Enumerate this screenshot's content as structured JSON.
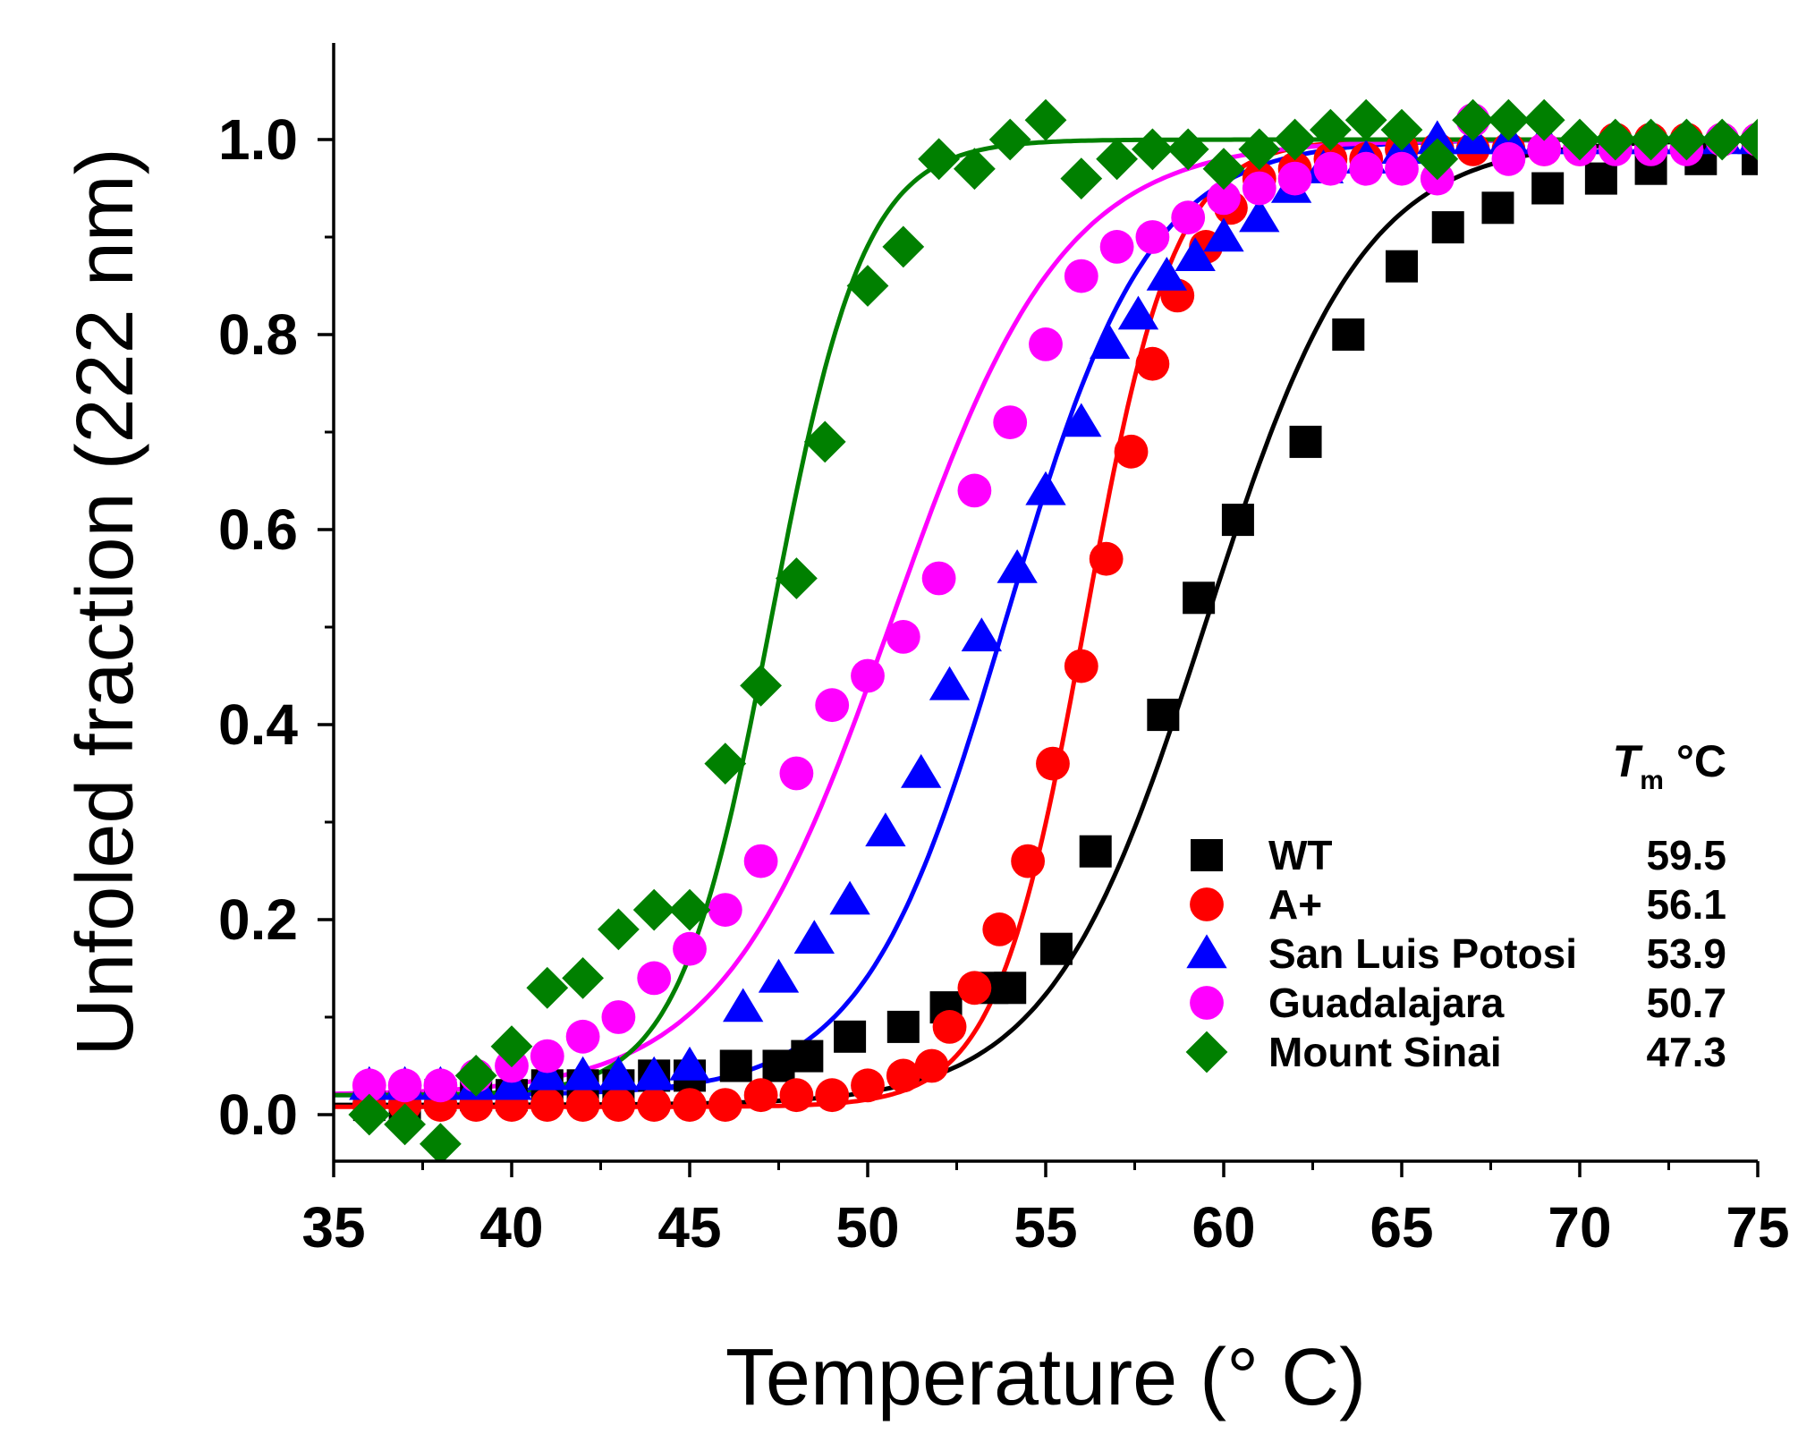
{
  "chart_data": {
    "type": "scatter",
    "xlabel": "Temperature (° C)",
    "ylabel": "Unfoled fraction (222 nm)",
    "xlim": [
      35,
      75
    ],
    "ylim": [
      -0.05,
      1.1
    ],
    "xticks": [
      35,
      40,
      45,
      50,
      55,
      60,
      65,
      70,
      75
    ],
    "xtick_labels": [
      "35",
      "40",
      "45",
      "50",
      "55",
      "60",
      "65",
      "70",
      "75"
    ],
    "yticks": [
      0.0,
      0.2,
      0.4,
      0.6,
      0.8,
      1.0
    ],
    "ytick_labels": [
      "0.0",
      "0.2",
      "0.4",
      "0.6",
      "0.8",
      "1.0"
    ],
    "legend": {
      "position": "bottom-right",
      "header_symbol": "T",
      "header_subscript": "m",
      "header_unit": "°C"
    },
    "series": [
      {
        "name": "WT",
        "tm_label": "59.5",
        "color": "#000000",
        "marker": "square",
        "fit": {
          "tm": 59.5,
          "width": 2.2,
          "base": 0.01
        },
        "x": [
          36,
          37,
          38,
          39,
          40,
          41,
          42,
          43,
          44,
          45,
          46.3,
          47.5,
          48.3,
          49.5,
          51,
          52.2,
          53.5,
          54,
          55.3,
          56.4,
          58.3,
          59.3,
          60.4,
          62.3,
          63.5,
          65,
          66.3,
          67.7,
          69.1,
          70.6,
          72,
          73.4,
          75
        ],
        "y": [
          0.01,
          0.01,
          0.02,
          0.02,
          0.02,
          0.03,
          0.03,
          0.03,
          0.04,
          0.04,
          0.05,
          0.05,
          0.06,
          0.08,
          0.09,
          0.11,
          0.13,
          0.13,
          0.17,
          0.27,
          0.41,
          0.53,
          0.61,
          0.69,
          0.8,
          0.87,
          0.91,
          0.93,
          0.95,
          0.96,
          0.97,
          0.98,
          0.98
        ]
      },
      {
        "name": "A+",
        "tm_label": "56.1",
        "color": "#ff0000",
        "marker": "circle",
        "fit": {
          "tm": 56.1,
          "width": 1.25,
          "base": 0.008
        },
        "x": [
          36,
          37,
          38,
          39,
          40,
          41,
          42,
          43,
          44,
          45,
          46,
          47,
          48,
          49,
          50,
          51,
          51.8,
          52.3,
          53,
          53.7,
          54.5,
          55.2,
          56,
          56.7,
          57.4,
          58,
          58.7,
          59.5,
          60.2,
          61,
          62,
          63,
          64,
          65,
          66,
          67,
          68,
          69,
          70,
          71,
          72,
          73,
          74,
          75
        ],
        "y": [
          0.01,
          0.01,
          0.01,
          0.01,
          0.01,
          0.01,
          0.01,
          0.01,
          0.01,
          0.01,
          0.01,
          0.02,
          0.02,
          0.02,
          0.03,
          0.04,
          0.05,
          0.09,
          0.13,
          0.19,
          0.26,
          0.36,
          0.46,
          0.57,
          0.68,
          0.77,
          0.84,
          0.89,
          0.93,
          0.96,
          0.97,
          0.98,
          0.98,
          0.99,
          0.99,
          0.99,
          0.99,
          0.99,
          0.99,
          1.0,
          1.0,
          1.0,
          1.0,
          1.0
        ]
      },
      {
        "name": "San Luis Potosi",
        "tm_label": "53.9",
        "color": "#0000ff",
        "marker": "triangle",
        "fit": {
          "tm": 53.9,
          "width": 2.0,
          "base": 0.02
        },
        "x": [
          36,
          37,
          38,
          39,
          40,
          41,
          42,
          43,
          44,
          45,
          46.5,
          47.5,
          48.5,
          49.5,
          50.5,
          51.5,
          52.3,
          53.2,
          54.2,
          55,
          56,
          56.8,
          57.6,
          58.4,
          59.2,
          60,
          61,
          61.9,
          62.8,
          64,
          65,
          66,
          67,
          68,
          69,
          70,
          71,
          72,
          73,
          74,
          75
        ],
        "y": [
          0.03,
          0.03,
          0.03,
          0.03,
          0.03,
          0.04,
          0.04,
          0.04,
          0.04,
          0.05,
          0.11,
          0.14,
          0.18,
          0.22,
          0.29,
          0.35,
          0.44,
          0.49,
          0.56,
          0.64,
          0.71,
          0.79,
          0.82,
          0.86,
          0.88,
          0.9,
          0.92,
          0.95,
          0.97,
          0.98,
          0.99,
          1.0,
          1.0,
          1.0,
          1.0,
          1.0,
          1.0,
          1.0,
          1.0,
          1.0,
          1.0
        ]
      },
      {
        "name": "Guadalajara",
        "tm_label": "50.7",
        "color": "#ff00ff",
        "marker": "circle",
        "fit": {
          "tm": 50.7,
          "width": 2.4,
          "base": 0.02
        },
        "x": [
          36,
          37,
          38,
          39,
          40,
          41,
          42,
          43,
          44,
          45,
          46,
          47,
          48,
          49,
          50,
          51,
          52,
          53,
          54,
          55,
          56,
          57,
          58,
          59,
          60,
          61,
          62,
          63,
          64,
          65,
          66,
          67,
          68,
          69,
          70,
          71,
          72,
          73,
          74,
          75
        ],
        "y": [
          0.03,
          0.03,
          0.03,
          0.04,
          0.05,
          0.06,
          0.08,
          0.1,
          0.14,
          0.17,
          0.21,
          0.26,
          0.35,
          0.42,
          0.45,
          0.49,
          0.55,
          0.64,
          0.71,
          0.79,
          0.86,
          0.89,
          0.9,
          0.92,
          0.94,
          0.95,
          0.96,
          0.97,
          0.97,
          0.97,
          0.96,
          1.02,
          0.98,
          0.99,
          0.99,
          0.99,
          0.99,
          0.99,
          1.0,
          1.0
        ]
      },
      {
        "name": "Mount Sinai",
        "tm_label": "47.3",
        "color": "#008000",
        "marker": "diamond",
        "fit": {
          "tm": 47.3,
          "width": 1.3,
          "base": 0.02
        },
        "x": [
          36,
          37,
          38,
          39,
          40,
          41,
          42,
          43,
          44,
          45,
          46,
          47,
          48,
          48.8,
          50,
          51,
          52,
          53,
          54,
          55,
          56,
          57,
          58,
          59,
          60,
          61,
          62,
          63,
          64,
          65,
          66,
          67,
          68,
          69,
          70,
          71,
          72,
          73,
          74,
          75
        ],
        "y": [
          0.0,
          -0.01,
          -0.03,
          0.04,
          0.07,
          0.13,
          0.14,
          0.19,
          0.21,
          0.21,
          0.36,
          0.44,
          0.55,
          0.69,
          0.85,
          0.89,
          0.98,
          0.97,
          1.0,
          1.02,
          0.96,
          0.98,
          0.99,
          0.99,
          0.97,
          0.99,
          1.0,
          1.01,
          1.02,
          1.01,
          0.98,
          1.02,
          1.02,
          1.02,
          1.0,
          1.0,
          1.0,
          1.0,
          1.0,
          1.0
        ]
      }
    ]
  }
}
